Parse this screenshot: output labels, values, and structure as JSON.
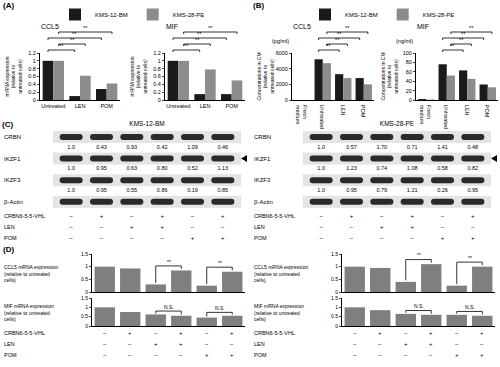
{
  "chart_data": [
    {
      "type": "bar",
      "panel": "(A)",
      "title": "CCL5",
      "ylabel": "mRNA expression (relative to untreated cells)",
      "categories": [
        "Untreated",
        "LEN",
        "POM"
      ],
      "series": [
        {
          "name": "KMS-12-BM",
          "color": "#1a1a1a",
          "values": [
            1,
            0.1,
            0.28
          ]
        },
        {
          "name": "KMS-28-PE",
          "color": "#8c8c8c",
          "values": [
            1,
            0.62,
            0.42
          ]
        }
      ],
      "ylim": [
        0,
        1.2
      ],
      "yticks": [
        0,
        0.2,
        0.4,
        0.6,
        0.8,
        1,
        1.2
      ],
      "legend": "top",
      "significance": [
        {
          "series": "KMS-12-BM",
          "from": "Untreated",
          "to": "LEN",
          "label": "**"
        },
        {
          "series": "KMS-28-PE",
          "from": "Untreated",
          "to": "LEN",
          "label": "**"
        },
        {
          "series": "KMS-12-BM",
          "from": "Untreated",
          "to": "POM",
          "label": "**"
        },
        {
          "series": "KMS-28-PE",
          "from": "Untreated",
          "to": "POM",
          "label": "**"
        }
      ]
    },
    {
      "type": "bar",
      "title": "MIF",
      "ylabel": "mRNA expression (relative to untreated cells)",
      "categories": [
        "Untreated",
        "LEN",
        "POM"
      ],
      "series": [
        {
          "name": "KMS-12-BM",
          "color": "#1a1a1a",
          "values": [
            1,
            0.15,
            0.15
          ]
        },
        {
          "name": "KMS-28-PE",
          "color": "#8c8c8c",
          "values": [
            1,
            0.78,
            0.5
          ]
        }
      ],
      "ylim": [
        0,
        1.2
      ],
      "yticks": [
        0,
        0.2,
        0.4,
        0.6,
        0.8,
        1,
        1.2
      ],
      "significance": [
        {
          "series": "KMS-12-BM",
          "from": "Untreated",
          "to": "LEN",
          "label": "**"
        },
        {
          "series": "KMS-28-PE",
          "from": "Untreated",
          "to": "LEN",
          "label": "**"
        },
        {
          "series": "KMS-12-BM",
          "from": "Untreated",
          "to": "POM",
          "label": "**"
        },
        {
          "series": "KMS-28-PE",
          "from": "Untreated",
          "to": "POM",
          "label": "**"
        }
      ]
    },
    {
      "type": "bar",
      "panel": "(B)",
      "title": "CCL5",
      "unit": "(pg/ml)",
      "ylabel": "Concentrations in CM (relative to untreated cells)",
      "categories": [
        "Fresh medium",
        "Untreated",
        "LEN",
        "POM"
      ],
      "series": [
        {
          "name": "KMS-12-BM",
          "color": "#1a1a1a",
          "values": [
            0,
            5200,
            3300,
            2800
          ]
        },
        {
          "name": "KMS-28-PE",
          "color": "#8c8c8c",
          "values": [
            0,
            4700,
            2800,
            2000
          ]
        }
      ],
      "ylim": [
        0,
        6000
      ],
      "yticks": [
        0,
        2000,
        4000,
        6000
      ],
      "legend": "top",
      "significance": [
        {
          "series": "KMS-12-BM",
          "from": "Untreated",
          "to": "LEN",
          "label": "**"
        },
        {
          "series": "KMS-28-PE",
          "from": "Untreated",
          "to": "LEN",
          "label": "**"
        },
        {
          "series": "KMS-12-BM",
          "from": "Untreated",
          "to": "POM",
          "label": "**"
        },
        {
          "series": "KMS-28-PE",
          "from": "Untreated",
          "to": "POM",
          "label": "**"
        }
      ]
    },
    {
      "type": "bar",
      "title": "MIF",
      "unit": "(ng/ml)",
      "ylabel": "Concentrations in CM (relative to untreated cells)",
      "categories": [
        "Fresh medium",
        "Untreated",
        "LEN",
        "POM"
      ],
      "series": [
        {
          "name": "KMS-12-BM",
          "color": "#1a1a1a",
          "values": [
            2,
            76,
            63,
            33
          ]
        },
        {
          "name": "KMS-28-PE",
          "color": "#8c8c8c",
          "values": [
            1,
            52,
            45,
            27
          ]
        }
      ],
      "ylim": [
        0,
        100
      ],
      "yticks": [
        0,
        20,
        40,
        60,
        80,
        100
      ],
      "significance": [
        {
          "series": "KMS-12-BM",
          "from": "Untreated",
          "to": "LEN",
          "label": "**"
        },
        {
          "series": "KMS-28-PE",
          "from": "Untreated",
          "to": "LEN",
          "label": "**"
        },
        {
          "series": "KMS-12-BM",
          "from": "Untreated",
          "to": "POM",
          "label": "**"
        },
        {
          "series": "KMS-28-PE",
          "from": "Untreated",
          "to": "POM",
          "label": "**"
        }
      ]
    },
    {
      "type": "bar",
      "panel": "(D)",
      "ylabel": "CCL5 mRNA expression (relative to untreated cells)",
      "categories": [
        null,
        null,
        null,
        null,
        null,
        null
      ],
      "values": [
        1,
        0.93,
        0.3,
        0.85,
        0.25,
        0.8
      ],
      "color": "#7f7f7f",
      "ylim": [
        0,
        1.5
      ],
      "yticks": [
        0,
        0.5,
        1,
        1.5
      ],
      "significance": [
        {
          "from": 2,
          "to": 3,
          "label": "**"
        },
        {
          "from": 4,
          "to": 5,
          "label": "**"
        }
      ]
    },
    {
      "type": "bar",
      "ylabel": "MIF mRNA expression (relative to untreated cells)",
      "categories": [
        null,
        null,
        null,
        null,
        null,
        null
      ],
      "values": [
        1,
        0.75,
        0.62,
        0.55,
        0.45,
        0.55
      ],
      "color": "#7f7f7f",
      "ylim": [
        0,
        1.5
      ],
      "yticks": [
        0,
        0.5,
        1,
        1.5
      ],
      "significance": [
        {
          "from": 2,
          "to": 3,
          "label": "N.S."
        },
        {
          "from": 4,
          "to": 5,
          "label": "N.S."
        }
      ],
      "conditions": [
        {
          "label": "CRBN6-5-5-VHL",
          "values": [
            "−",
            "+",
            "−",
            "+",
            "−",
            "+"
          ]
        },
        {
          "label": "LEN",
          "values": [
            "−",
            "−",
            "+",
            "+",
            "−",
            "−"
          ]
        },
        {
          "label": "POM",
          "values": [
            "−",
            "−",
            "−",
            "−",
            "+",
            "+"
          ]
        }
      ]
    },
    {
      "type": "bar",
      "ylabel": "CCL5 mRNA expression (relative to untreated cells)",
      "categories": [
        null,
        null,
        null,
        null,
        null,
        null
      ],
      "values": [
        1,
        0.95,
        0.4,
        1.1,
        0.25,
        1.0
      ],
      "color": "#7f7f7f",
      "ylim": [
        0,
        1.5
      ],
      "yticks": [
        0,
        0.5,
        1,
        1.5
      ],
      "significance": [
        {
          "from": 2,
          "to": 3,
          "label": "**"
        },
        {
          "from": 4,
          "to": 5,
          "label": "**"
        }
      ]
    },
    {
      "type": "bar",
      "ylabel": "MIF mRNA expression (relative to untreated cells)",
      "categories": [
        null,
        null,
        null,
        null,
        null,
        null
      ],
      "values": [
        1,
        0.85,
        0.65,
        0.6,
        0.6,
        0.55
      ],
      "color": "#7f7f7f",
      "ylim": [
        0,
        1.5
      ],
      "yticks": [
        0,
        0.5,
        1,
        1.5
      ],
      "significance": [
        {
          "from": 2,
          "to": 3,
          "label": "N.S."
        },
        {
          "from": 4,
          "to": 5,
          "label": "N.S."
        }
      ],
      "conditions": [
        {
          "label": "CRBN6-5-5-VHL",
          "values": [
            "−",
            "+",
            "−",
            "+",
            "−",
            "+"
          ]
        },
        {
          "label": "LEN",
          "values": [
            "−",
            "−",
            "+",
            "+",
            "−",
            "−"
          ]
        },
        {
          "label": "POM",
          "values": [
            "−",
            "−",
            "−",
            "−",
            "+",
            "+"
          ]
        }
      ]
    }
  ],
  "western_blot": {
    "panel": "(C)",
    "conditions": [
      {
        "label": "CRBN6-5-5-VHL",
        "values": [
          "−",
          "+",
          "−",
          "+",
          "−",
          "+"
        ]
      },
      {
        "label": "LEN",
        "values": [
          "−",
          "−",
          "+",
          "+",
          "−",
          "−"
        ]
      },
      {
        "label": "POM",
        "values": [
          "−",
          "−",
          "−",
          "−",
          "+",
          "+"
        ]
      }
    ],
    "blots": [
      {
        "title": "KMS-12-BM",
        "rows": [
          {
            "label": "CRBN",
            "values": [
              "1.0",
              "0.43",
              "0.93",
              "0.42",
              "1.09",
              "0.46"
            ]
          },
          {
            "label": "IKZF1",
            "values": [
              "1.0",
              "0.95",
              "0.63",
              "0.80",
              "0.52",
              "1.13"
            ],
            "arrow": true
          },
          {
            "label": "IKZF3",
            "values": [
              "1.0",
              "0.95",
              "0.55",
              "0.86",
              "0.19",
              "0.85"
            ]
          },
          {
            "label": "β-Actin"
          }
        ]
      },
      {
        "title": "KMS-28-PE",
        "rows": [
          {
            "label": "CRBN",
            "values": [
              "1.0",
              "0.57",
              "1.70",
              "0.71",
              "1.41",
              "0.48"
            ]
          },
          {
            "label": "IKZF1",
            "values": [
              "1.0",
              "1.23",
              "0.74",
              "1.08",
              "0.58",
              "0.82"
            ],
            "arrow": true
          },
          {
            "label": "IKZF3",
            "values": [
              "1.0",
              "0.95",
              "0.79",
              "1.21",
              "0.26",
              "0.95"
            ]
          },
          {
            "label": "β-Actin"
          }
        ]
      }
    ]
  }
}
